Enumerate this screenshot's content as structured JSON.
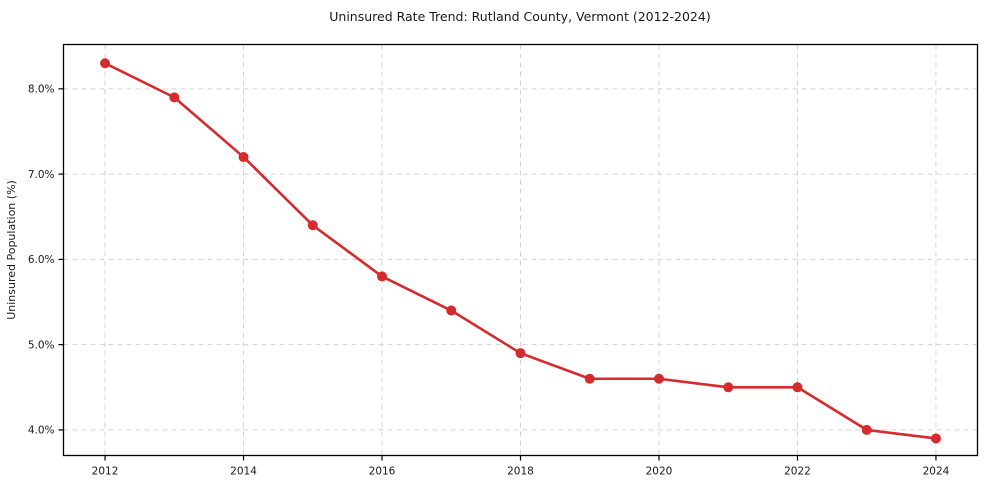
{
  "chart_data": {
    "type": "line",
    "title": "Uninsured Rate Trend: Rutland County, Vermont (2012-2024)",
    "xlabel": "",
    "ylabel": "Uninsured Population (%)",
    "x": [
      2012,
      2013,
      2014,
      2015,
      2016,
      2017,
      2018,
      2019,
      2020,
      2021,
      2022,
      2023,
      2024
    ],
    "values": [
      8.3,
      7.9,
      7.2,
      6.4,
      5.8,
      5.4,
      4.9,
      4.6,
      4.6,
      4.5,
      4.5,
      4.0,
      3.9
    ],
    "xtick_values": [
      2012,
      2014,
      2016,
      2018,
      2020,
      2022,
      2024
    ],
    "xtick_labels": [
      "2012",
      "2014",
      "2016",
      "2018",
      "2020",
      "2022",
      "2024"
    ],
    "ytick_values": [
      4.0,
      5.0,
      6.0,
      7.0,
      8.0
    ],
    "ytick_labels": [
      "4.0%",
      "5.0%",
      "6.0%",
      "7.0%",
      "8.0%"
    ],
    "xlim": [
      2011.4,
      2024.6
    ],
    "ylim": [
      3.7,
      8.52
    ],
    "grid": true,
    "legend": "none",
    "colors": {
      "line": "#d62b2e",
      "marker": "#d62b2e",
      "grid": "#d3d3d3",
      "spine": "#000000",
      "background": "#ffffff",
      "text": "#1a1a1a"
    },
    "line_width": 2.6,
    "marker_radius": 5
  }
}
